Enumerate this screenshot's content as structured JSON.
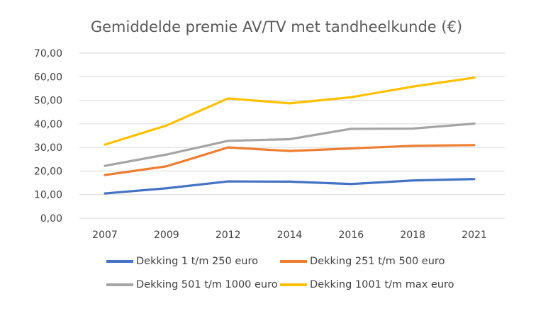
{
  "chart_data": {
    "type": "line",
    "title": "Gemiddelde premie AV/TV met tandheelkunde (€)",
    "xlabel": "",
    "ylabel": "",
    "categories": [
      "2007",
      "2009",
      "2012",
      "2014",
      "2016",
      "2018",
      "2021"
    ],
    "ylim": [
      0,
      70
    ],
    "yticks": [
      "0,00",
      "10,00",
      "20,00",
      "30,00",
      "40,00",
      "50,00",
      "60,00",
      "70,00"
    ],
    "grid": true,
    "legend_position": "bottom",
    "series": [
      {
        "name": "Dekking 1 t/m 250 euro",
        "color": "#4472C4",
        "values": [
          10.5,
          12.7,
          15.6,
          15.5,
          14.5,
          16.0,
          16.6
        ]
      },
      {
        "name": "Dekking 251 t/m 500 euro",
        "color": "#ED7D31",
        "values": [
          18.3,
          22.0,
          30.0,
          28.5,
          29.6,
          30.7,
          31.0
        ]
      },
      {
        "name": "Dekking 501 t/m 1000 euro",
        "color": "#A5A5A5",
        "values": [
          22.2,
          27.0,
          32.8,
          33.5,
          37.9,
          38.0,
          40.1
        ]
      },
      {
        "name": "Dekking 1001 t/m max euro",
        "color": "#FFC000",
        "values": [
          31.2,
          39.3,
          50.8,
          48.7,
          51.3,
          55.8,
          59.6
        ]
      }
    ]
  }
}
